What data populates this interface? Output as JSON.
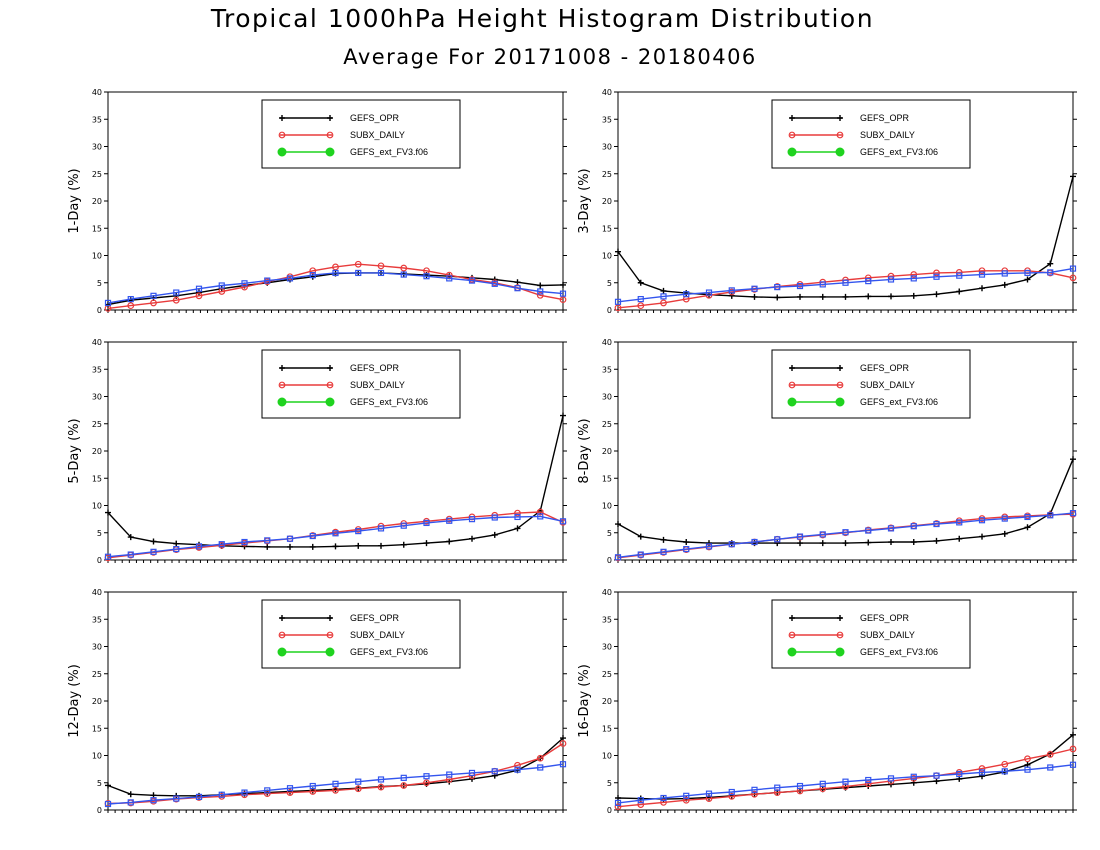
{
  "title": "Tropical 1000hPa Height Histogram Distribution",
  "subtitle": "Average For 20171008 - 20180406",
  "colors": {
    "GEFS_OPR": "#000000",
    "SUBX_DAILY": "#e83b3b",
    "GEFS_ext_FV3.f06": "#1fd31f",
    "blue_series": "#3355ee"
  },
  "chart_data": [
    {
      "type": "line",
      "ylabel": "1-Day (%)",
      "ylim": [
        0,
        40
      ],
      "yticks": [
        0,
        5,
        10,
        15,
        20,
        25,
        30,
        35,
        40
      ],
      "x": [
        1,
        2,
        3,
        4,
        5,
        6,
        7,
        8,
        9,
        10,
        11,
        12,
        13,
        14,
        15,
        16,
        17,
        18,
        19,
        20,
        21
      ],
      "legend": [
        "GEFS_OPR",
        "SUBX_DAILY",
        "GEFS_ext_FV3.f06"
      ],
      "series": [
        {
          "name": "GEFS_OPR",
          "color": "#000000",
          "marker": "plus",
          "values": [
            1.0,
            1.8,
            2.2,
            2.6,
            3.2,
            3.9,
            4.5,
            5.0,
            5.6,
            6.1,
            6.7,
            6.8,
            6.8,
            6.6,
            6.4,
            6.2,
            5.9,
            5.6,
            5.1,
            4.5,
            4.6
          ]
        },
        {
          "name": "SUBX_DAILY",
          "color": "#e83b3b",
          "marker": "circle",
          "values": [
            0.3,
            0.8,
            1.3,
            1.8,
            2.6,
            3.4,
            4.2,
            5.2,
            6.1,
            7.2,
            7.9,
            8.4,
            8.1,
            7.7,
            7.2,
            6.4,
            5.6,
            5.0,
            4.1,
            2.7,
            1.9
          ]
        },
        {
          "name": "",
          "color": "#3355ee",
          "marker": "square",
          "values": [
            1.3,
            2.0,
            2.6,
            3.2,
            3.9,
            4.5,
            4.9,
            5.4,
            5.8,
            6.4,
            6.8,
            6.8,
            6.8,
            6.5,
            6.2,
            5.8,
            5.4,
            4.8,
            4.0,
            3.4,
            3.0
          ]
        }
      ]
    },
    {
      "type": "line",
      "ylabel": "3-Day (%)",
      "ylim": [
        0,
        40
      ],
      "yticks": [
        0,
        5,
        10,
        15,
        20,
        25,
        30,
        35,
        40
      ],
      "x": [
        1,
        2,
        3,
        4,
        5,
        6,
        7,
        8,
        9,
        10,
        11,
        12,
        13,
        14,
        15,
        16,
        17,
        18,
        19,
        20,
        21
      ],
      "legend": [
        "GEFS_OPR",
        "SUBX_DAILY",
        "GEFS_ext_FV3.f06"
      ],
      "series": [
        {
          "name": "GEFS_OPR",
          "color": "#000000",
          "marker": "plus",
          "values": [
            10.7,
            5.0,
            3.5,
            3.1,
            2.8,
            2.6,
            2.4,
            2.3,
            2.4,
            2.4,
            2.4,
            2.5,
            2.5,
            2.6,
            2.9,
            3.4,
            4.0,
            4.6,
            5.6,
            8.5,
            24.5
          ]
        },
        {
          "name": "SUBX_DAILY",
          "color": "#e83b3b",
          "marker": "circle",
          "values": [
            0.4,
            0.8,
            1.3,
            2.0,
            2.7,
            3.3,
            3.8,
            4.3,
            4.7,
            5.1,
            5.5,
            5.9,
            6.2,
            6.5,
            6.8,
            6.9,
            7.2,
            7.2,
            7.2,
            6.8,
            5.9
          ]
        },
        {
          "name": "",
          "color": "#3355ee",
          "marker": "square",
          "values": [
            1.5,
            2.0,
            2.5,
            2.9,
            3.2,
            3.6,
            3.9,
            4.2,
            4.4,
            4.7,
            5.0,
            5.3,
            5.6,
            5.8,
            6.1,
            6.3,
            6.5,
            6.7,
            6.8,
            6.9,
            7.6
          ]
        }
      ]
    },
    {
      "type": "line",
      "ylabel": "5-Day (%)",
      "ylim": [
        0,
        40
      ],
      "yticks": [
        0,
        5,
        10,
        15,
        20,
        25,
        30,
        35,
        40
      ],
      "x": [
        1,
        2,
        3,
        4,
        5,
        6,
        7,
        8,
        9,
        10,
        11,
        12,
        13,
        14,
        15,
        16,
        17,
        18,
        19,
        20,
        21
      ],
      "legend": [
        "GEFS_OPR",
        "SUBX_DAILY",
        "GEFS_ext_FV3.f06"
      ],
      "series": [
        {
          "name": "GEFS_OPR",
          "color": "#000000",
          "marker": "plus",
          "values": [
            8.7,
            4.2,
            3.4,
            3.0,
            2.8,
            2.6,
            2.5,
            2.4,
            2.4,
            2.4,
            2.5,
            2.6,
            2.6,
            2.8,
            3.1,
            3.4,
            3.9,
            4.6,
            5.8,
            9.0,
            26.5
          ]
        },
        {
          "name": "SUBX_DAILY",
          "color": "#e83b3b",
          "marker": "circle",
          "values": [
            0.4,
            0.9,
            1.4,
            1.9,
            2.3,
            2.7,
            3.1,
            3.5,
            3.9,
            4.5,
            5.1,
            5.6,
            6.2,
            6.7,
            7.1,
            7.5,
            7.9,
            8.2,
            8.6,
            8.8,
            6.9
          ]
        },
        {
          "name": "",
          "color": "#3355ee",
          "marker": "square",
          "values": [
            0.6,
            1.0,
            1.5,
            2.0,
            2.5,
            2.9,
            3.3,
            3.6,
            3.9,
            4.4,
            4.9,
            5.3,
            5.8,
            6.3,
            6.8,
            7.2,
            7.5,
            7.8,
            7.9,
            8.0,
            7.1
          ]
        }
      ]
    },
    {
      "type": "line",
      "ylabel": "8-Day (%)",
      "ylim": [
        0,
        40
      ],
      "yticks": [
        0,
        5,
        10,
        15,
        20,
        25,
        30,
        35,
        40
      ],
      "x": [
        1,
        2,
        3,
        4,
        5,
        6,
        7,
        8,
        9,
        10,
        11,
        12,
        13,
        14,
        15,
        16,
        17,
        18,
        19,
        20,
        21
      ],
      "legend": [
        "GEFS_OPR",
        "SUBX_DAILY",
        "GEFS_ext_FV3.f06"
      ],
      "series": [
        {
          "name": "GEFS_OPR",
          "color": "#000000",
          "marker": "plus",
          "values": [
            6.6,
            4.3,
            3.7,
            3.3,
            3.1,
            3.1,
            3.1,
            3.1,
            3.1,
            3.1,
            3.1,
            3.2,
            3.3,
            3.3,
            3.5,
            3.9,
            4.3,
            4.8,
            6.0,
            8.5,
            18.5
          ]
        },
        {
          "name": "SUBX_DAILY",
          "color": "#e83b3b",
          "marker": "circle",
          "values": [
            0.4,
            0.9,
            1.4,
            1.9,
            2.4,
            2.9,
            3.3,
            3.8,
            4.2,
            4.6,
            5.0,
            5.5,
            5.9,
            6.3,
            6.7,
            7.2,
            7.6,
            7.9,
            8.1,
            8.3,
            8.4
          ]
        },
        {
          "name": "",
          "color": "#3355ee",
          "marker": "square",
          "values": [
            0.5,
            1.0,
            1.5,
            2.0,
            2.5,
            2.9,
            3.3,
            3.8,
            4.3,
            4.7,
            5.1,
            5.4,
            5.8,
            6.2,
            6.6,
            6.9,
            7.3,
            7.6,
            7.9,
            8.2,
            8.6
          ]
        }
      ]
    },
    {
      "type": "line",
      "ylabel": "12-Day (%)",
      "ylim": [
        0,
        40
      ],
      "yticks": [
        0,
        5,
        10,
        15,
        20,
        25,
        30,
        35,
        40
      ],
      "x": [
        1,
        2,
        3,
        4,
        5,
        6,
        7,
        8,
        9,
        10,
        11,
        12,
        13,
        14,
        15,
        16,
        17,
        18,
        19,
        20,
        21
      ],
      "legend": [
        "GEFS_OPR",
        "SUBX_DAILY",
        "GEFS_ext_FV3.f06"
      ],
      "series": [
        {
          "name": "GEFS_OPR",
          "color": "#000000",
          "marker": "plus",
          "values": [
            4.5,
            2.9,
            2.7,
            2.6,
            2.6,
            2.8,
            3.0,
            3.2,
            3.4,
            3.6,
            3.8,
            4.0,
            4.3,
            4.5,
            4.8,
            5.2,
            5.7,
            6.3,
            7.3,
            9.5,
            13.2
          ]
        },
        {
          "name": "SUBX_DAILY",
          "color": "#e83b3b",
          "marker": "circle",
          "values": [
            1.2,
            1.3,
            1.6,
            2.0,
            2.3,
            2.5,
            2.8,
            3.0,
            3.2,
            3.4,
            3.6,
            3.9,
            4.2,
            4.5,
            5.0,
            5.6,
            6.3,
            7.1,
            8.2,
            9.5,
            12.2
          ]
        },
        {
          "name": "",
          "color": "#3355ee",
          "marker": "square",
          "values": [
            1.1,
            1.4,
            1.8,
            2.1,
            2.4,
            2.8,
            3.2,
            3.6,
            4.0,
            4.4,
            4.8,
            5.2,
            5.6,
            5.9,
            6.2,
            6.5,
            6.8,
            7.1,
            7.4,
            7.8,
            8.4
          ]
        }
      ]
    },
    {
      "type": "line",
      "ylabel": "16-Day (%)",
      "ylim": [
        0,
        40
      ],
      "yticks": [
        0,
        5,
        10,
        15,
        20,
        25,
        30,
        35,
        40
      ],
      "x": [
        1,
        2,
        3,
        4,
        5,
        6,
        7,
        8,
        9,
        10,
        11,
        12,
        13,
        14,
        15,
        16,
        17,
        18,
        19,
        20,
        21
      ],
      "legend": [
        "GEFS_OPR",
        "SUBX_DAILY",
        "GEFS_ext_FV3.f06"
      ],
      "series": [
        {
          "name": "GEFS_OPR",
          "color": "#000000",
          "marker": "plus",
          "values": [
            2.2,
            2.1,
            2.0,
            2.1,
            2.3,
            2.6,
            2.9,
            3.2,
            3.5,
            3.8,
            4.1,
            4.4,
            4.7,
            5.0,
            5.3,
            5.7,
            6.2,
            7.0,
            8.3,
            10.3,
            13.8
          ]
        },
        {
          "name": "SUBX_DAILY",
          "color": "#e83b3b",
          "marker": "circle",
          "values": [
            0.6,
            1.0,
            1.4,
            1.8,
            2.1,
            2.5,
            2.9,
            3.2,
            3.5,
            3.9,
            4.3,
            4.8,
            5.3,
            5.8,
            6.3,
            6.9,
            7.6,
            8.4,
            9.4,
            10.2,
            11.2
          ]
        },
        {
          "name": "",
          "color": "#3355ee",
          "marker": "square",
          "values": [
            1.3,
            1.8,
            2.2,
            2.6,
            3.0,
            3.3,
            3.7,
            4.1,
            4.4,
            4.8,
            5.2,
            5.5,
            5.8,
            6.1,
            6.3,
            6.6,
            6.9,
            7.1,
            7.4,
            7.8,
            8.3
          ]
        }
      ]
    }
  ]
}
